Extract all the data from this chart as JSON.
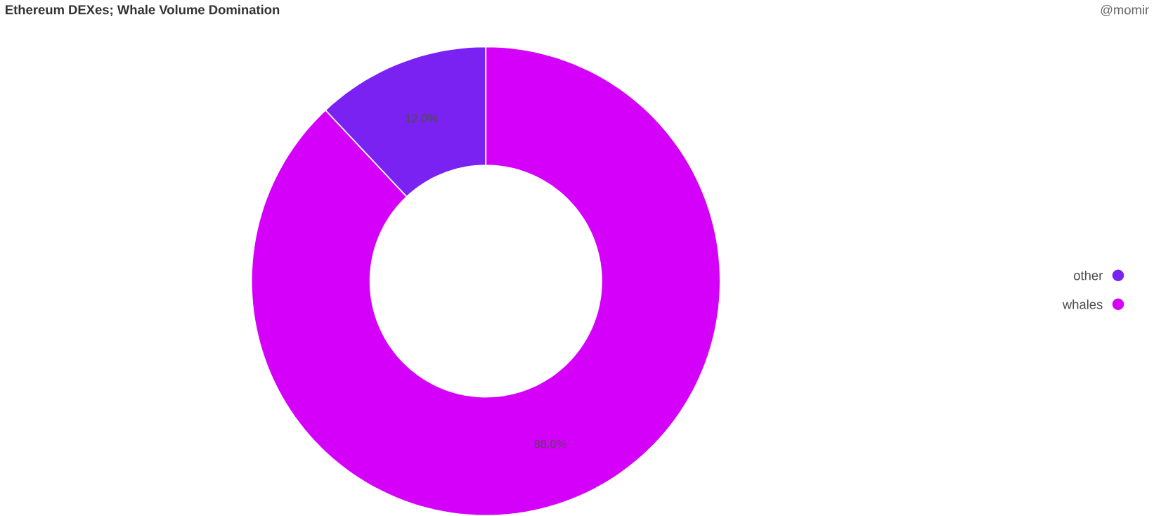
{
  "chart_data": {
    "type": "donut",
    "title": "Ethereum DEXes; Whale Volume Domination",
    "annotations": [
      "@momir"
    ],
    "categories": [
      "other",
      "whales"
    ],
    "values": [
      12,
      88
    ],
    "colors": [
      "#7a22f2",
      "#d500f9"
    ],
    "value_labels": [
      "12.0%",
      "88.0%"
    ],
    "legend": "right"
  }
}
